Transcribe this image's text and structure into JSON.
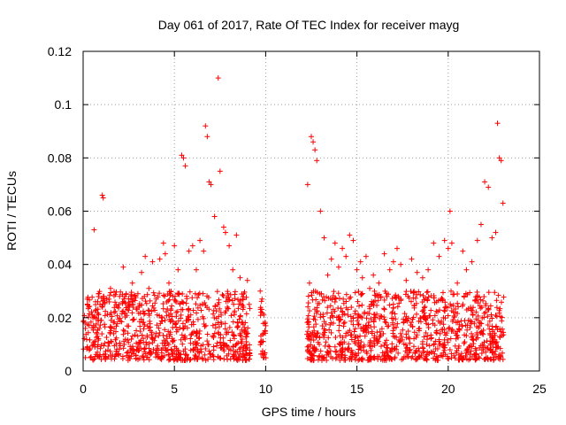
{
  "chart_data": {
    "type": "scatter",
    "title": "Day 061 of 2017, Rate Of TEC Index for receiver mayg",
    "xlabel": "GPS time / hours",
    "ylabel": "ROTI / TECUs",
    "xlim": [
      0,
      25
    ],
    "ylim": [
      0,
      0.12
    ],
    "xticks": [
      0,
      5,
      10,
      15,
      20,
      25
    ],
    "xtick_labels": [
      "0",
      "5",
      "10",
      "15",
      "20",
      "25"
    ],
    "yticks": [
      0,
      0.02,
      0.04,
      0.06,
      0.08,
      0.1,
      0.12
    ],
    "ytick_labels": [
      "0",
      "0.02",
      "0.04",
      "0.06",
      "0.08",
      "0.1",
      "0.12"
    ],
    "grid": true,
    "marker": "plus",
    "color": "#ff0000",
    "series": [
      {
        "x": [
          0.1,
          0.3,
          0.5,
          0.6,
          0.8,
          1.0,
          1.05,
          1.1,
          1.3,
          1.5,
          1.7,
          2.0,
          2.2,
          2.5,
          2.7,
          3.0,
          3.2,
          3.4,
          3.6,
          3.8,
          4.0,
          4.2,
          4.4,
          4.5,
          4.7,
          5.0,
          5.2,
          5.4,
          5.5,
          5.6,
          5.8,
          6.0,
          6.2,
          6.4,
          6.6,
          6.7,
          6.8,
          6.9,
          7.0,
          7.2,
          7.4,
          7.5,
          7.7,
          7.8,
          8.0,
          8.2,
          8.4,
          8.6,
          8.8,
          9.0,
          9.1,
          9.7,
          9.8,
          9.9,
          10.0,
          12.3,
          12.4,
          12.5,
          12.6,
          12.7,
          12.8,
          13.0,
          13.2,
          13.4,
          13.6,
          13.8,
          14.0,
          14.2,
          14.4,
          14.6,
          14.8,
          15.0,
          15.2,
          15.3,
          15.5,
          15.7,
          15.9,
          16.2,
          16.5,
          16.8,
          17.0,
          17.2,
          17.4,
          17.7,
          18.0,
          18.3,
          18.6,
          18.9,
          19.2,
          19.5,
          19.8,
          20.0,
          20.1,
          20.2,
          20.5,
          20.8,
          21.0,
          21.3,
          21.6,
          21.8,
          22.0,
          22.2,
          22.4,
          22.6,
          22.7,
          22.8,
          22.9,
          23.0
        ],
        "y": [
          0.018,
          0.024,
          0.021,
          0.053,
          0.026,
          0.019,
          0.066,
          0.065,
          0.027,
          0.031,
          0.022,
          0.028,
          0.039,
          0.025,
          0.033,
          0.029,
          0.037,
          0.043,
          0.031,
          0.041,
          0.027,
          0.042,
          0.048,
          0.044,
          0.033,
          0.047,
          0.038,
          0.081,
          0.08,
          0.077,
          0.045,
          0.047,
          0.038,
          0.049,
          0.045,
          0.092,
          0.088,
          0.071,
          0.07,
          0.058,
          0.11,
          0.075,
          0.054,
          0.052,
          0.047,
          0.038,
          0.051,
          0.035,
          0.029,
          0.034,
          0.025,
          0.03,
          0.027,
          0.021,
          0.017,
          0.07,
          0.033,
          0.088,
          0.086,
          0.083,
          0.079,
          0.06,
          0.05,
          0.036,
          0.042,
          0.048,
          0.039,
          0.046,
          0.043,
          0.051,
          0.049,
          0.038,
          0.041,
          0.035,
          0.043,
          0.031,
          0.036,
          0.033,
          0.044,
          0.038,
          0.041,
          0.046,
          0.04,
          0.034,
          0.042,
          0.037,
          0.035,
          0.038,
          0.048,
          0.043,
          0.049,
          0.046,
          0.06,
          0.048,
          0.033,
          0.045,
          0.038,
          0.041,
          0.049,
          0.055,
          0.071,
          0.069,
          0.05,
          0.052,
          0.093,
          0.08,
          0.079,
          0.063
        ]
      }
    ]
  }
}
